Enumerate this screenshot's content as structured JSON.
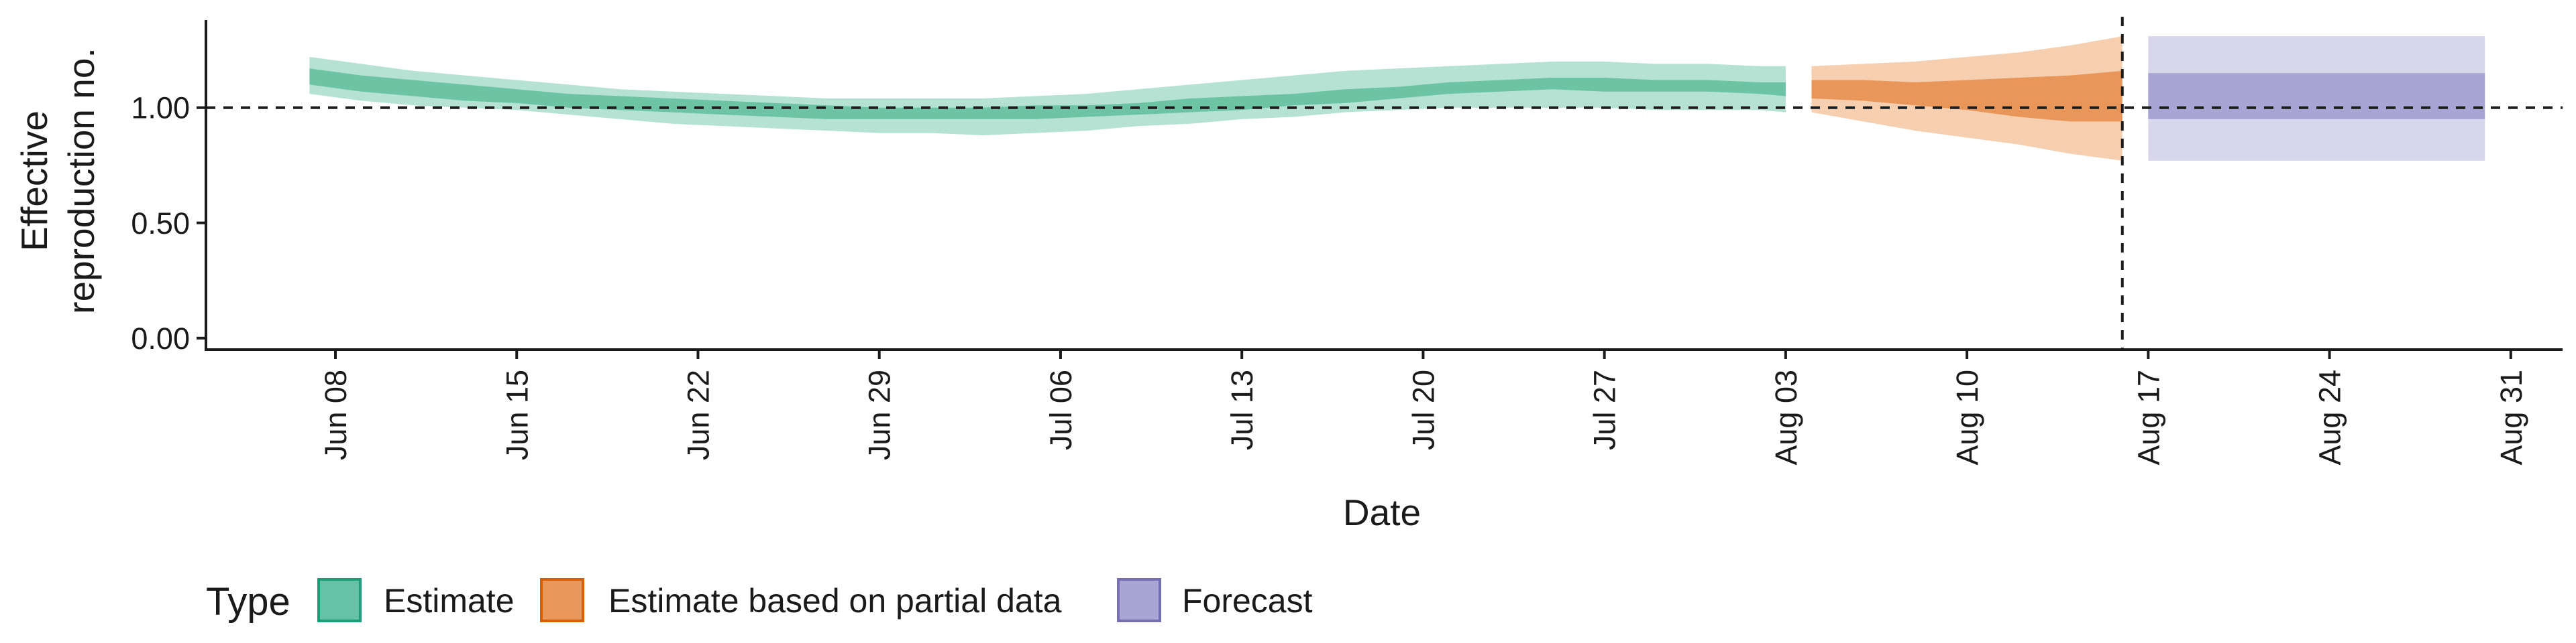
{
  "chart_data": {
    "type": "area",
    "xlabel": "Date",
    "ylabel_lines": [
      "Effective",
      "reproduction no."
    ],
    "x_range": [
      "2020-06-03",
      "2020-09-02"
    ],
    "ylim": [
      -0.05,
      1.38
    ],
    "reference_line_y": 1.0,
    "forecast_divider_date": "2020-08-16",
    "x_ticks": [
      {
        "date": "2020-06-08",
        "label": "Jun 08"
      },
      {
        "date": "2020-06-15",
        "label": "Jun 15"
      },
      {
        "date": "2020-06-22",
        "label": "Jun 22"
      },
      {
        "date": "2020-06-29",
        "label": "Jun 29"
      },
      {
        "date": "2020-07-06",
        "label": "Jul 06"
      },
      {
        "date": "2020-07-13",
        "label": "Jul 13"
      },
      {
        "date": "2020-07-20",
        "label": "Jul 20"
      },
      {
        "date": "2020-07-27",
        "label": "Jul 27"
      },
      {
        "date": "2020-08-03",
        "label": "Aug 03"
      },
      {
        "date": "2020-08-10",
        "label": "Aug 10"
      },
      {
        "date": "2020-08-17",
        "label": "Aug 17"
      },
      {
        "date": "2020-08-24",
        "label": "Aug 24"
      },
      {
        "date": "2020-08-31",
        "label": "Aug 31"
      }
    ],
    "y_ticks": [
      {
        "value": 0.0,
        "label": "0.00"
      },
      {
        "value": 0.5,
        "label": "0.50"
      },
      {
        "value": 1.0,
        "label": "1.00"
      }
    ],
    "legend": {
      "title": "Type",
      "position": "bottom",
      "items": [
        {
          "label": "Estimate",
          "fill": "#66c2a5",
          "border": "#1b9e77"
        },
        {
          "label": "Estimate based on partial data",
          "fill": "#e8965a",
          "border": "#d95f02"
        },
        {
          "label": "Forecast",
          "fill": "#a8a4d4",
          "border": "#7570b3"
        }
      ]
    },
    "series": [
      {
        "name": "Estimate",
        "inner_color": "#6cc4a4",
        "outer_color": "#b5e2d2",
        "dates": [
          "2020-06-07",
          "2020-06-09",
          "2020-06-11",
          "2020-06-13",
          "2020-06-15",
          "2020-06-17",
          "2020-06-19",
          "2020-06-21",
          "2020-06-23",
          "2020-06-25",
          "2020-06-27",
          "2020-06-29",
          "2020-07-01",
          "2020-07-03",
          "2020-07-05",
          "2020-07-07",
          "2020-07-09",
          "2020-07-11",
          "2020-07-13",
          "2020-07-15",
          "2020-07-17",
          "2020-07-19",
          "2020-07-21",
          "2020-07-23",
          "2020-07-25",
          "2020-07-27",
          "2020-07-29",
          "2020-07-31",
          "2020-08-02",
          "2020-08-03"
        ],
        "outer_low": [
          1.06,
          1.03,
          1.01,
          1.0,
          0.99,
          0.97,
          0.95,
          0.93,
          0.92,
          0.91,
          0.9,
          0.89,
          0.89,
          0.88,
          0.89,
          0.9,
          0.92,
          0.93,
          0.95,
          0.96,
          0.98,
          0.99,
          1.0,
          1.0,
          1.0,
          1.0,
          0.99,
          0.99,
          0.99,
          0.98
        ],
        "inner_low": [
          1.1,
          1.07,
          1.05,
          1.03,
          1.02,
          1.0,
          0.99,
          0.98,
          0.97,
          0.96,
          0.95,
          0.95,
          0.95,
          0.95,
          0.95,
          0.96,
          0.97,
          0.98,
          0.99,
          1.01,
          1.02,
          1.04,
          1.06,
          1.07,
          1.08,
          1.07,
          1.07,
          1.07,
          1.06,
          1.05
        ],
        "inner_high": [
          1.17,
          1.14,
          1.12,
          1.1,
          1.08,
          1.06,
          1.05,
          1.04,
          1.03,
          1.02,
          1.01,
          1.0,
          1.0,
          1.0,
          1.01,
          1.01,
          1.02,
          1.04,
          1.05,
          1.06,
          1.08,
          1.09,
          1.11,
          1.12,
          1.13,
          1.13,
          1.12,
          1.12,
          1.11,
          1.11
        ],
        "outer_high": [
          1.22,
          1.19,
          1.16,
          1.14,
          1.12,
          1.1,
          1.08,
          1.07,
          1.06,
          1.05,
          1.04,
          1.04,
          1.04,
          1.04,
          1.05,
          1.06,
          1.08,
          1.1,
          1.12,
          1.14,
          1.16,
          1.17,
          1.18,
          1.19,
          1.2,
          1.2,
          1.19,
          1.19,
          1.18,
          1.18
        ]
      },
      {
        "name": "Estimate based on partial data",
        "inner_color": "#e8965a",
        "outer_color": "#f5cfb0",
        "dates": [
          "2020-08-04",
          "2020-08-06",
          "2020-08-08",
          "2020-08-10",
          "2020-08-12",
          "2020-08-14",
          "2020-08-16"
        ],
        "outer_low": [
          0.98,
          0.94,
          0.9,
          0.87,
          0.84,
          0.8,
          0.77
        ],
        "inner_low": [
          1.04,
          1.03,
          1.01,
          0.99,
          0.96,
          0.94,
          0.94
        ],
        "inner_high": [
          1.12,
          1.12,
          1.11,
          1.12,
          1.13,
          1.14,
          1.16
        ],
        "outer_high": [
          1.18,
          1.19,
          1.2,
          1.22,
          1.24,
          1.27,
          1.31
        ]
      },
      {
        "name": "Forecast",
        "inner_color": "#a8a4d4",
        "outer_color": "#d7d6ea",
        "dates": [
          "2020-08-17",
          "2020-08-30"
        ],
        "outer_low": [
          0.77,
          0.77
        ],
        "inner_low": [
          0.95,
          0.95
        ],
        "inner_high": [
          1.15,
          1.15
        ],
        "outer_high": [
          1.31,
          1.31
        ]
      }
    ]
  }
}
